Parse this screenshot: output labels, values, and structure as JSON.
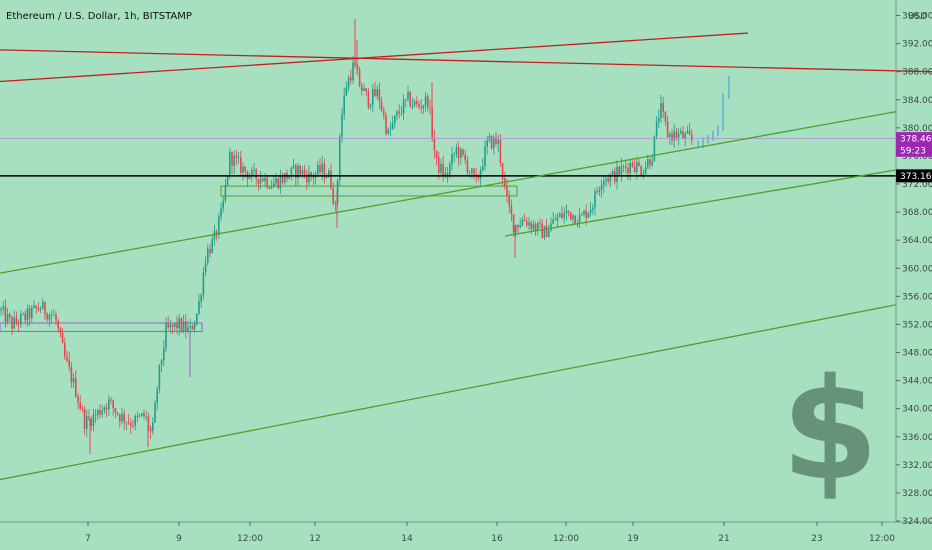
{
  "header": {
    "title": "Ethereum / U.S. Dollar, 1h, BITSTAMP",
    "currency": "USD"
  },
  "colors": {
    "background": "#a7dfc1",
    "candle_up": "#1f9e8a",
    "candle_down": "#e8454c",
    "red_line": "#c41e1e",
    "green_line": "#4ca32f",
    "black_line": "#000000",
    "purple_tag": "#9c27b0",
    "projection": "#4aa3df",
    "dollar_logo": "#5e8a72"
  },
  "chart_data": {
    "type": "candlestick",
    "ylim": [
      324,
      398
    ],
    "y_ticks": [
      "396.00",
      "392.00",
      "388.00",
      "384.00",
      "380.00",
      "376.00",
      "372.00",
      "368.00",
      "364.00",
      "360.00",
      "356.00",
      "352.00",
      "348.00",
      "344.00",
      "340.00",
      "336.00",
      "332.00",
      "328.00",
      "324.00"
    ],
    "x_ticks": [
      {
        "label": "7",
        "t": 88
      },
      {
        "label": "9",
        "t": 179
      },
      {
        "label": "12:00",
        "t": 250
      },
      {
        "label": "12",
        "t": 315
      },
      {
        "label": "14",
        "t": 407
      },
      {
        "label": "16",
        "t": 497
      },
      {
        "label": "12:00",
        "t": 566
      },
      {
        "label": "19",
        "t": 633
      },
      {
        "label": "21",
        "t": 724
      },
      {
        "label": "23",
        "t": 817
      },
      {
        "label": "12:00",
        "t": 882
      }
    ],
    "price_tags": [
      {
        "label": "378.46",
        "value": 378.46,
        "color": "#9c27b0"
      },
      {
        "label": "59:23",
        "value": 376.8,
        "color": "#9c27b0"
      },
      {
        "label": "373.16",
        "value": 373.16,
        "color": "#000000"
      }
    ],
    "horizontal_lines": [
      {
        "value": 378.46,
        "color": "#b28bd6",
        "width": 0.8
      },
      {
        "value": 373.16,
        "color": "#000000",
        "width": 1.5
      }
    ],
    "trend_lines": [
      {
        "t1": 0,
        "v1": 391.1,
        "t2": 932,
        "v2": 388.0,
        "color": "#c41e1e"
      },
      {
        "t1": 0,
        "v1": 386.6,
        "t2": 748,
        "v2": 393.5,
        "color": "#c41e1e"
      },
      {
        "t1": 0,
        "v1": 359.3,
        "t2": 896,
        "v2": 382.3,
        "color": "#4ca32f"
      },
      {
        "t1": 505,
        "v1": 364.6,
        "t2": 896,
        "v2": 374.0,
        "color": "#4ca32f"
      },
      {
        "t1": 0,
        "v1": 329.9,
        "t2": 896,
        "v2": 354.8,
        "color": "#4ca32f"
      }
    ],
    "zones": [
      {
        "t1": 0,
        "t2": 202,
        "v1": 351.0,
        "v2": 352.2,
        "color": "#9c5fc8"
      },
      {
        "t1": 221,
        "t2": 517,
        "v1": 370.3,
        "v2": 371.7,
        "color": "#4ca32f"
      }
    ],
    "anchors": [
      {
        "t": 0,
        "v": 354
      },
      {
        "t": 12,
        "v": 352
      },
      {
        "t": 25,
        "v": 353
      },
      {
        "t": 40,
        "v": 354.5
      },
      {
        "t": 55,
        "v": 353
      },
      {
        "t": 65,
        "v": 347
      },
      {
        "t": 75,
        "v": 343
      },
      {
        "t": 85,
        "v": 338
      },
      {
        "t": 95,
        "v": 339
      },
      {
        "t": 108,
        "v": 341
      },
      {
        "t": 120,
        "v": 339
      },
      {
        "t": 132,
        "v": 338
      },
      {
        "t": 145,
        "v": 339
      },
      {
        "t": 152,
        "v": 336
      },
      {
        "t": 158,
        "v": 344
      },
      {
        "t": 166,
        "v": 351
      },
      {
        "t": 178,
        "v": 352
      },
      {
        "t": 190,
        "v": 351
      },
      {
        "t": 198,
        "v": 354
      },
      {
        "t": 206,
        "v": 362
      },
      {
        "t": 214,
        "v": 364
      },
      {
        "t": 222,
        "v": 368
      },
      {
        "t": 230,
        "v": 376
      },
      {
        "t": 240,
        "v": 374.5
      },
      {
        "t": 252,
        "v": 373
      },
      {
        "t": 262,
        "v": 373
      },
      {
        "t": 272,
        "v": 372
      },
      {
        "t": 285,
        "v": 373
      },
      {
        "t": 298,
        "v": 374
      },
      {
        "t": 310,
        "v": 373
      },
      {
        "t": 322,
        "v": 374
      },
      {
        "t": 330,
        "v": 373
      },
      {
        "t": 336,
        "v": 368
      },
      {
        "t": 340,
        "v": 380
      },
      {
        "t": 346,
        "v": 386
      },
      {
        "t": 354,
        "v": 389
      },
      {
        "t": 360,
        "v": 386
      },
      {
        "t": 368,
        "v": 384
      },
      {
        "t": 378,
        "v": 385
      },
      {
        "t": 388,
        "v": 379
      },
      {
        "t": 398,
        "v": 382
      },
      {
        "t": 408,
        "v": 384
      },
      {
        "t": 418,
        "v": 383
      },
      {
        "t": 428,
        "v": 384
      },
      {
        "t": 436,
        "v": 375
      },
      {
        "t": 446,
        "v": 373
      },
      {
        "t": 456,
        "v": 377
      },
      {
        "t": 466,
        "v": 375
      },
      {
        "t": 476,
        "v": 372
      },
      {
        "t": 488,
        "v": 378
      },
      {
        "t": 498,
        "v": 378
      },
      {
        "t": 506,
        "v": 370
      },
      {
        "t": 514,
        "v": 366
      },
      {
        "t": 524,
        "v": 367
      },
      {
        "t": 534,
        "v": 366
      },
      {
        "t": 544,
        "v": 365
      },
      {
        "t": 556,
        "v": 367
      },
      {
        "t": 568,
        "v": 368
      },
      {
        "t": 580,
        "v": 367
      },
      {
        "t": 592,
        "v": 369
      },
      {
        "t": 602,
        "v": 373
      },
      {
        "t": 612,
        "v": 373
      },
      {
        "t": 622,
        "v": 374
      },
      {
        "t": 632,
        "v": 375
      },
      {
        "t": 642,
        "v": 374
      },
      {
        "t": 652,
        "v": 376
      },
      {
        "t": 660,
        "v": 383
      },
      {
        "t": 668,
        "v": 379
      },
      {
        "t": 678,
        "v": 379
      },
      {
        "t": 688,
        "v": 378.5
      },
      {
        "t": 694,
        "v": 378
      }
    ],
    "highlights": [
      {
        "t": 355,
        "v": 395.5
      },
      {
        "t": 357,
        "v": 392.5
      },
      {
        "t": 515,
        "v": 361.5
      },
      {
        "t": 337,
        "v": 365.8
      },
      {
        "t": 90,
        "v": 333.5
      },
      {
        "t": 148,
        "v": 334.5
      },
      {
        "t": 190,
        "v": 344.5
      },
      {
        "t": 432,
        "v": 386.5
      }
    ],
    "projection": [
      {
        "t": 698,
        "v": 377.5
      },
      {
        "t": 703,
        "v": 378.2
      },
      {
        "t": 708,
        "v": 378.6
      },
      {
        "t": 713,
        "v": 379.2
      },
      {
        "t": 718,
        "v": 380.0
      },
      {
        "t": 723,
        "v": 384.5
      },
      {
        "t": 729,
        "v": 387.0
      }
    ]
  }
}
